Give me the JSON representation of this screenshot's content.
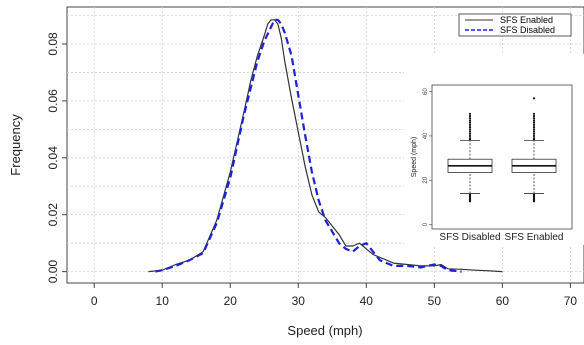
{
  "chart_data": [
    {
      "type": "line",
      "title": "",
      "xlabel": "Speed (mph)",
      "ylabel": "Frequency",
      "xlim": [
        -4,
        72
      ],
      "ylim": [
        -0.004,
        0.093
      ],
      "xticks": [
        0,
        10,
        20,
        30,
        40,
        50,
        60,
        70
      ],
      "yticks": [
        0.0,
        0.02,
        0.04,
        0.06,
        0.08
      ],
      "ytick_labels": [
        "0.00",
        "0.02",
        "0.04",
        "0.06",
        "0.08"
      ],
      "grid": true,
      "legend_position": "top-right",
      "series": [
        {
          "name": "SFS Enabled",
          "style": "solid",
          "color": "#333333",
          "x": [
            8,
            10,
            12,
            14,
            16,
            18,
            20,
            22,
            23,
            24,
            25,
            25.5,
            26,
            26.5,
            27,
            27.5,
            28,
            29,
            30,
            31,
            32,
            33,
            34,
            35,
            36,
            37,
            38,
            39,
            40,
            41,
            42,
            43,
            44,
            46,
            48,
            50,
            51,
            52,
            54,
            56,
            58,
            60
          ],
          "y": [
            0.0,
            0.0005,
            0.0025,
            0.004,
            0.007,
            0.018,
            0.035,
            0.056,
            0.067,
            0.076,
            0.083,
            0.087,
            0.0885,
            0.0885,
            0.087,
            0.082,
            0.074,
            0.061,
            0.049,
            0.037,
            0.027,
            0.021,
            0.019,
            0.016,
            0.013,
            0.009,
            0.009,
            0.01,
            0.008,
            0.006,
            0.005,
            0.004,
            0.003,
            0.0025,
            0.002,
            0.002,
            0.0025,
            0.001,
            0.0008,
            0.0005,
            0.0003,
            0.0
          ]
        },
        {
          "name": "SFS Disabled",
          "style": "dashed",
          "color": "#1f1fe0",
          "x": [
            9,
            10,
            12,
            14,
            16,
            18,
            20,
            22,
            24,
            25,
            26,
            26.5,
            27,
            27.5,
            28,
            29,
            30,
            31,
            32,
            33,
            34,
            35,
            36,
            37,
            38,
            39,
            40,
            41,
            42,
            43,
            44,
            46,
            48,
            50,
            51,
            52,
            54
          ],
          "y": [
            0.0,
            0.0005,
            0.002,
            0.004,
            0.0065,
            0.017,
            0.033,
            0.055,
            0.074,
            0.081,
            0.086,
            0.0885,
            0.0885,
            0.087,
            0.084,
            0.076,
            0.062,
            0.048,
            0.035,
            0.025,
            0.018,
            0.014,
            0.01,
            0.008,
            0.007,
            0.009,
            0.01,
            0.007,
            0.004,
            0.003,
            0.002,
            0.002,
            0.0015,
            0.0025,
            0.002,
            0.0005,
            0.0
          ]
        }
      ]
    },
    {
      "type": "box",
      "ylabel": "Speed (mph)",
      "ylim": [
        -2,
        63
      ],
      "yticks": [
        0,
        20,
        40,
        60
      ],
      "categories": [
        "SFS Disabled",
        "SFS Enabled"
      ],
      "boxes": [
        {
          "name": "SFS Disabled",
          "whisker_low": 14,
          "q1": 23.5,
          "median": 26.5,
          "q3": 29.5,
          "whisker_high": 38,
          "outliers": [
            10.5,
            11,
            11.5,
            12,
            12.5,
            13,
            13.5,
            38.5,
            39,
            40,
            41,
            42,
            43,
            44,
            45,
            46,
            47,
            48,
            49,
            50
          ]
        },
        {
          "name": "SFS Enabled",
          "whisker_low": 14,
          "q1": 23.5,
          "median": 26.5,
          "q3": 29.5,
          "whisker_high": 38,
          "outliers": [
            10.5,
            11,
            11.5,
            12,
            12.5,
            13,
            13.5,
            38.5,
            39,
            40,
            41,
            42,
            43,
            44,
            45,
            46,
            47,
            48,
            49,
            50,
            57
          ]
        }
      ]
    }
  ]
}
